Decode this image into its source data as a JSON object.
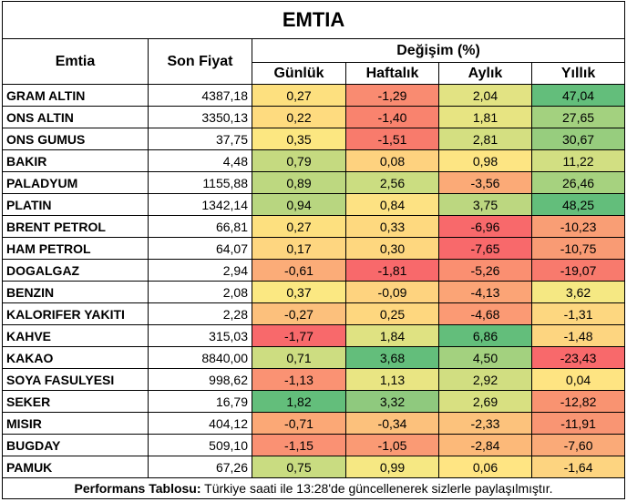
{
  "title": "EMTIA",
  "headers": {
    "commodity": "Emtia",
    "last_price": "Son Fiyat",
    "change_group": "Değişim (%)",
    "periods": [
      "Günlük",
      "Haftalık",
      "Aylık",
      "Yıllık"
    ]
  },
  "rows": [
    {
      "name": "GRAM ALTIN",
      "price": "4387,18",
      "changes": [
        "0,27",
        "-1,29",
        "2,04",
        "47,04"
      ],
      "colors": [
        "#fde07f",
        "#f98b71",
        "#e2e383",
        "#63be7b"
      ]
    },
    {
      "name": "ONS ALTIN",
      "price": "3350,13",
      "changes": [
        "0,22",
        "-1,40",
        "1,81",
        "27,65"
      ],
      "colors": [
        "#fedb7f",
        "#f9836e",
        "#e7e482",
        "#a3d17f"
      ]
    },
    {
      "name": "ONS GUMUS",
      "price": "37,75",
      "changes": [
        "0,35",
        "-1,51",
        "2,81",
        "30,67"
      ],
      "colors": [
        "#fce781",
        "#f87b6c",
        "#d4df81",
        "#97cd7e"
      ]
    },
    {
      "name": "BAKIR",
      "price": "4,48",
      "changes": [
        "0,79",
        "0,08",
        "0,98",
        "11,22"
      ],
      "colors": [
        "#c5da80",
        "#fed27f",
        "#fde583",
        "#d2df82"
      ]
    },
    {
      "name": "PALADYUM",
      "price": "1155,88",
      "changes": [
        "0,89",
        "2,56",
        "-3,56",
        "26,46"
      ],
      "colors": [
        "#bdd880",
        "#cbdd81",
        "#fbaa77",
        "#a6d27f"
      ]
    },
    {
      "name": "PLATIN",
      "price": "1342,14",
      "changes": [
        "0,94",
        "0,84",
        "3,75",
        "48,25"
      ],
      "colors": [
        "#b8d680",
        "#fde283",
        "#bcd780",
        "#63be7b"
      ]
    },
    {
      "name": "BRENT PETROL",
      "price": "66,81",
      "changes": [
        "0,27",
        "0,33",
        "-6,96",
        "-10,23"
      ],
      "colors": [
        "#fde07f",
        "#fed97f",
        "#f8696b",
        "#f99e75"
      ]
    },
    {
      "name": "HAM PETROL",
      "price": "64,07",
      "changes": [
        "0,17",
        "0,30",
        "-7,65",
        "-10,75"
      ],
      "colors": [
        "#fed680",
        "#fed77f",
        "#f8696b",
        "#f99b74"
      ]
    },
    {
      "name": "DOGALGAZ",
      "price": "2,94",
      "changes": [
        "-0,61",
        "-1,81",
        "-5,26",
        "-19,07"
      ],
      "colors": [
        "#fbac78",
        "#f8696b",
        "#fa8f71",
        "#f87a6d"
      ]
    },
    {
      "name": "BENZIN",
      "price": "2,08",
      "changes": [
        "0,37",
        "-0,09",
        "-4,13",
        "3,62"
      ],
      "colors": [
        "#fbe882",
        "#fed37f",
        "#fba476",
        "#f5e883"
      ]
    },
    {
      "name": "KALORIFER YAKITI",
      "price": "2,28",
      "changes": [
        "-0,27",
        "0,25",
        "-4,68",
        "-1,31"
      ],
      "colors": [
        "#fcc07c",
        "#fed77f",
        "#fb9a74",
        "#fdd780"
      ]
    },
    {
      "name": "KAHVE",
      "price": "315,03",
      "changes": [
        "-1,77",
        "1,84",
        "6,86",
        "-1,48"
      ],
      "colors": [
        "#f8696b",
        "#dfe282",
        "#63be7b",
        "#fdd580"
      ]
    },
    {
      "name": "KAKAO",
      "price": "8840,00",
      "changes": [
        "0,71",
        "3,68",
        "4,50",
        "-23,43"
      ],
      "colors": [
        "#cddd81",
        "#63be7b",
        "#a3d17f",
        "#f8696b"
      ]
    },
    {
      "name": "SOYA FASULYESI",
      "price": "998,62",
      "changes": [
        "-1,13",
        "1,13",
        "2,92",
        "0,04"
      ],
      "colors": [
        "#fa9273",
        "#e9e583",
        "#d1de81",
        "#fee482"
      ]
    },
    {
      "name": "SEKER",
      "price": "16,79",
      "changes": [
        "1,82",
        "3,32",
        "2,69",
        "-12,82"
      ],
      "colors": [
        "#63be7b",
        "#8fc97e",
        "#d8e081",
        "#f99371"
      ]
    },
    {
      "name": "MISIR",
      "price": "404,12",
      "changes": [
        "-0,71",
        "-0,34",
        "-2,33",
        "-11,91"
      ],
      "colors": [
        "#fba876",
        "#fcc17c",
        "#fcc27c",
        "#f99573"
      ]
    },
    {
      "name": "BUGDAY",
      "price": "509,10",
      "changes": [
        "-1,15",
        "-1,05",
        "-2,84",
        "-7,60"
      ],
      "colors": [
        "#fa9173",
        "#fa9a74",
        "#fcb979",
        "#faaa78"
      ]
    },
    {
      "name": "PAMUK",
      "price": "67,26",
      "changes": [
        "0,75",
        "0,99",
        "0,06",
        "-1,64"
      ],
      "colors": [
        "#c9dc81",
        "#f6e883",
        "#ffe583",
        "#fdd480"
      ]
    }
  ],
  "footer": {
    "label": "Performans Tablosu:",
    "text": " Türkiye saati ile 13:28'de güncellenerek sizlerle paylaşılmıştır."
  }
}
